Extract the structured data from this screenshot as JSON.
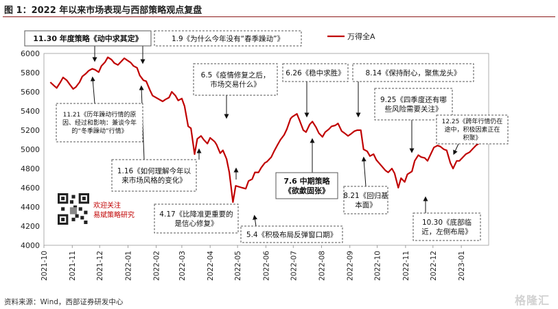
{
  "page": {
    "title": "图 1：2022 年以来市场表现与西部策略观点复盘",
    "source": "资料来源：Wind，西部证券研发中心",
    "watermark": "格隆汇",
    "follow_line1": "欢迎关注",
    "follow_line2": "易斌策略研究"
  },
  "colors": {
    "line": "#c00000",
    "title_rule": "#8b1a1a",
    "box_border": "#555555"
  },
  "chart_data": {
    "type": "line",
    "title": "",
    "xlabel": "",
    "ylabel": "",
    "legend": {
      "position": "top-right",
      "label": "万得全A"
    },
    "ylim": [
      4000,
      6000
    ],
    "yticks": [
      4000,
      4200,
      4400,
      4600,
      4800,
      5000,
      5200,
      5400,
      5600,
      5800,
      6000
    ],
    "xlim": [
      "2021-10-01",
      "2023-01-31"
    ],
    "xticks": [
      "2021-10",
      "2021-11",
      "2021-12",
      "2022-01",
      "2022-02",
      "2022-03",
      "2022-04",
      "2022-05",
      "2022-06",
      "2022-07",
      "2022-08",
      "2022-09",
      "2022-10",
      "2022-11",
      "2022-12",
      "2023-01"
    ],
    "series": [
      {
        "name": "万得全A",
        "points": [
          [
            "2021-10-08",
            5700
          ],
          [
            "2021-10-12",
            5665
          ],
          [
            "2021-10-15",
            5640
          ],
          [
            "2021-10-19",
            5700
          ],
          [
            "2021-10-22",
            5750
          ],
          [
            "2021-10-26",
            5720
          ],
          [
            "2021-10-29",
            5680
          ],
          [
            "2021-11-02",
            5630
          ],
          [
            "2021-11-05",
            5650
          ],
          [
            "2021-11-09",
            5700
          ],
          [
            "2021-11-12",
            5760
          ],
          [
            "2021-11-16",
            5790
          ],
          [
            "2021-11-19",
            5820
          ],
          [
            "2021-11-23",
            5840
          ],
          [
            "2021-11-26",
            5830
          ],
          [
            "2021-11-30",
            5805
          ],
          [
            "2021-12-03",
            5870
          ],
          [
            "2021-12-07",
            5910
          ],
          [
            "2021-12-10",
            5960
          ],
          [
            "2021-12-14",
            5935
          ],
          [
            "2021-12-17",
            5900
          ],
          [
            "2021-12-21",
            5880
          ],
          [
            "2021-12-24",
            5910
          ],
          [
            "2021-12-28",
            5950
          ],
          [
            "2021-12-31",
            5930
          ],
          [
            "2022-01-04",
            5905
          ],
          [
            "2022-01-07",
            5870
          ],
          [
            "2022-01-11",
            5850
          ],
          [
            "2022-01-14",
            5770
          ],
          [
            "2022-01-18",
            5720
          ],
          [
            "2022-01-21",
            5710
          ],
          [
            "2022-01-25",
            5620
          ],
          [
            "2022-01-28",
            5560
          ],
          [
            "2022-02-08",
            5500
          ],
          [
            "2022-02-11",
            5520
          ],
          [
            "2022-02-15",
            5540
          ],
          [
            "2022-02-18",
            5600
          ],
          [
            "2022-02-22",
            5560
          ],
          [
            "2022-02-25",
            5510
          ],
          [
            "2022-03-01",
            5530
          ],
          [
            "2022-03-04",
            5450
          ],
          [
            "2022-03-08",
            5240
          ],
          [
            "2022-03-11",
            5220
          ],
          [
            "2022-03-15",
            4950
          ],
          [
            "2022-03-18",
            5110
          ],
          [
            "2022-03-22",
            5140
          ],
          [
            "2022-03-25",
            5100
          ],
          [
            "2022-03-29",
            5060
          ],
          [
            "2022-04-01",
            5120
          ],
          [
            "2022-04-06",
            5080
          ],
          [
            "2022-04-08",
            5050
          ],
          [
            "2022-04-12",
            4960
          ],
          [
            "2022-04-15",
            4990
          ],
          [
            "2022-04-19",
            4900
          ],
          [
            "2022-04-22",
            4760
          ],
          [
            "2022-04-26",
            4450
          ],
          [
            "2022-04-29",
            4620
          ],
          [
            "2022-05-06",
            4600
          ],
          [
            "2022-05-10",
            4590
          ],
          [
            "2022-05-13",
            4670
          ],
          [
            "2022-05-17",
            4690
          ],
          [
            "2022-05-20",
            4760
          ],
          [
            "2022-05-24",
            4760
          ],
          [
            "2022-05-27",
            4810
          ],
          [
            "2022-05-31",
            4860
          ],
          [
            "2022-06-02",
            4870
          ],
          [
            "2022-06-07",
            4920
          ],
          [
            "2022-06-10",
            4980
          ],
          [
            "2022-06-14",
            5050
          ],
          [
            "2022-06-17",
            5100
          ],
          [
            "2022-06-21",
            5150
          ],
          [
            "2022-06-24",
            5210
          ],
          [
            "2022-06-28",
            5320
          ],
          [
            "2022-06-30",
            5340
          ],
          [
            "2022-07-05",
            5370
          ],
          [
            "2022-07-08",
            5300
          ],
          [
            "2022-07-12",
            5200
          ],
          [
            "2022-07-15",
            5180
          ],
          [
            "2022-07-19",
            5260
          ],
          [
            "2022-07-22",
            5290
          ],
          [
            "2022-07-26",
            5230
          ],
          [
            "2022-07-29",
            5170
          ],
          [
            "2022-08-02",
            5130
          ],
          [
            "2022-08-05",
            5180
          ],
          [
            "2022-08-09",
            5210
          ],
          [
            "2022-08-12",
            5240
          ],
          [
            "2022-08-16",
            5250
          ],
          [
            "2022-08-19",
            5270
          ],
          [
            "2022-08-23",
            5190
          ],
          [
            "2022-08-26",
            5170
          ],
          [
            "2022-08-30",
            5140
          ],
          [
            "2022-09-02",
            5160
          ],
          [
            "2022-09-06",
            5190
          ],
          [
            "2022-09-09",
            5200
          ],
          [
            "2022-09-13",
            5200
          ],
          [
            "2022-09-16",
            5000
          ],
          [
            "2022-09-20",
            4980
          ],
          [
            "2022-09-23",
            4930
          ],
          [
            "2022-09-27",
            4950
          ],
          [
            "2022-09-30",
            4890
          ],
          [
            "2022-10-10",
            4780
          ],
          [
            "2022-10-13",
            4760
          ],
          [
            "2022-10-17",
            4800
          ],
          [
            "2022-10-20",
            4750
          ],
          [
            "2022-10-24",
            4600
          ],
          [
            "2022-10-27",
            4700
          ],
          [
            "2022-10-31",
            4660
          ],
          [
            "2022-11-03",
            4740
          ],
          [
            "2022-11-08",
            4770
          ],
          [
            "2022-11-11",
            4880
          ],
          [
            "2022-11-15",
            4940
          ],
          [
            "2022-11-18",
            4920
          ],
          [
            "2022-11-22",
            4910
          ],
          [
            "2022-11-25",
            4880
          ],
          [
            "2022-11-29",
            4960
          ],
          [
            "2022-12-02",
            5020
          ],
          [
            "2022-12-06",
            5040
          ],
          [
            "2022-12-09",
            5030
          ],
          [
            "2022-12-13",
            5000
          ],
          [
            "2022-12-16",
            4990
          ],
          [
            "2022-12-20",
            4860
          ],
          [
            "2022-12-23",
            4800
          ],
          [
            "2022-12-27",
            4880
          ],
          [
            "2022-12-30",
            4880
          ],
          [
            "2023-01-04",
            4930
          ],
          [
            "2023-01-06",
            4950
          ],
          [
            "2023-01-10",
            4970
          ],
          [
            "2023-01-13",
            5000
          ],
          [
            "2023-01-17",
            5040
          ],
          [
            "2023-01-20",
            5060
          ]
        ]
      }
    ],
    "annotations": [
      {
        "text": "11.30 年度策略《动中求其定》",
        "bold": true,
        "box": "solid"
      },
      {
        "text": "1.9《为什么今年没有“春季躁动”》",
        "bold": false,
        "box": "dashed"
      },
      {
        "text": "6.5《疫情修复之后，市场交易什么》",
        "bold": false,
        "box": "dashed"
      },
      {
        "text": "6.26《稳中求胜》",
        "bold": false,
        "box": "dashed"
      },
      {
        "text": "8.14《保持耐心，聚焦龙头》",
        "bold": false,
        "box": "dashed"
      },
      {
        "text": "9.25《四季度还有哪些风险需要关注》",
        "bold": false,
        "box": "dashed"
      },
      {
        "text": "12.25《跨年行情仍在途中，积极因素正在积聚》",
        "bold": false,
        "box": "dashed"
      },
      {
        "text": "11.21《历年躁动行情的原因、经过和影响：兼谈今年的“冬季躁动”行情》",
        "bold": false,
        "box": "dashed"
      },
      {
        "text": "1.16《如何理解今年以来市场风格的变化》",
        "bold": false,
        "box": "dashed"
      },
      {
        "text": "4.17《比降准更重要的是信心修复》",
        "bold": false,
        "box": "dashed"
      },
      {
        "text": "5.4《积极布局反弹窗口期》",
        "bold": false,
        "box": "dashed"
      },
      {
        "text": "7.6 中期策略《欲歔固张》",
        "bold": true,
        "box": "solid"
      },
      {
        "text": "8.21《回归基本面》",
        "bold": false,
        "box": "dashed"
      },
      {
        "text": "10.30《底部临近，左侧布局》",
        "bold": false,
        "box": "dashed"
      }
    ]
  }
}
